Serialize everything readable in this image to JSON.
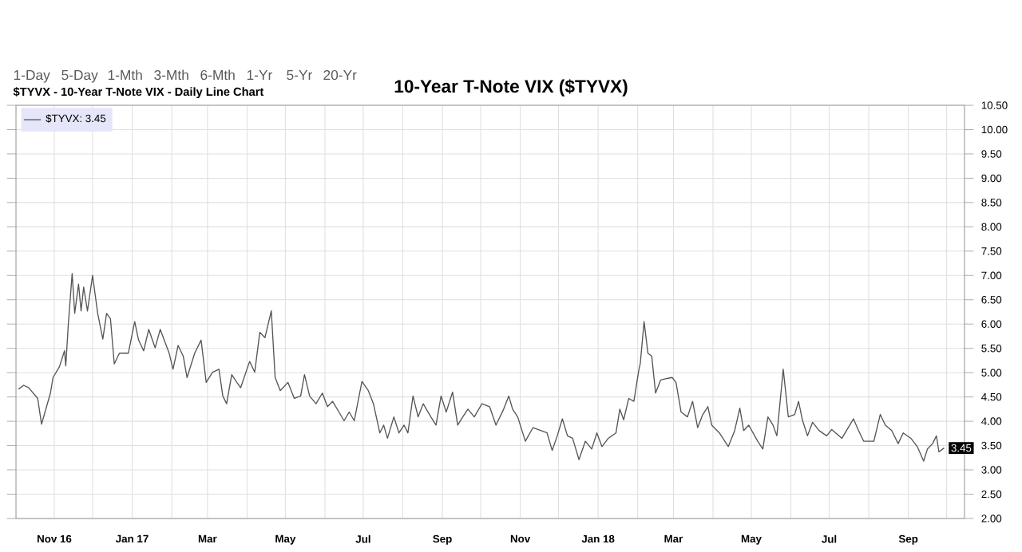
{
  "chart_data": {
    "type": "line",
    "title": "10-Year T-Note VIX ($TYVX)",
    "subtitle": "$TYVX - 10-Year T-Note VIX - Daily Line Chart",
    "annotations": [
      "1-Day",
      "5-Day",
      "1-Mth",
      "3-Mth",
      "6-Mth",
      "1-Yr",
      "5-Yr",
      "20-Yr",
      "3.45"
    ],
    "x": [
      "2016-10-04",
      "2016-10-08",
      "2016-10-12",
      "2016-10-19",
      "2016-10-22",
      "2016-10-29",
      "2016-10-31",
      "2016-11-05",
      "2016-11-09",
      "2016-11-10",
      "2016-11-12",
      "2016-11-15",
      "2016-11-17",
      "2016-11-20",
      "2016-11-22",
      "2016-11-24",
      "2016-11-27",
      "2016-12-01",
      "2016-12-05",
      "2016-12-09",
      "2016-12-12",
      "2016-12-15",
      "2016-12-18",
      "2016-12-22",
      "2016-12-29",
      "2017-01-03",
      "2017-01-06",
      "2017-01-10",
      "2017-01-14",
      "2017-01-19",
      "2017-01-23",
      "2017-01-27",
      "2017-01-30",
      "2017-02-02",
      "2017-02-06",
      "2017-02-10",
      "2017-02-13",
      "2017-02-19",
      "2017-02-24",
      "2017-02-28",
      "2017-03-05",
      "2017-03-10",
      "2017-03-13",
      "2017-03-16",
      "2017-03-20",
      "2017-03-24",
      "2017-03-27",
      "2017-04-03",
      "2017-04-07",
      "2017-04-11",
      "2017-04-15",
      "2017-04-20",
      "2017-04-23",
      "2017-04-27",
      "2017-05-03",
      "2017-05-08",
      "2017-05-13",
      "2017-05-16",
      "2017-05-20",
      "2017-05-25",
      "2017-05-30",
      "2017-06-03",
      "2017-06-07",
      "2017-06-12",
      "2017-06-16",
      "2017-06-20",
      "2017-06-24",
      "2017-06-30",
      "2017-07-05",
      "2017-07-09",
      "2017-07-14",
      "2017-07-17",
      "2017-07-20",
      "2017-07-25",
      "2017-07-29",
      "2017-08-02",
      "2017-08-05",
      "2017-08-09",
      "2017-08-13",
      "2017-08-17",
      "2017-08-23",
      "2017-08-27",
      "2017-08-31",
      "2017-09-04",
      "2017-09-09",
      "2017-09-13",
      "2017-09-17",
      "2017-09-21",
      "2017-09-26",
      "2017-10-02",
      "2017-10-08",
      "2017-10-13",
      "2017-10-19",
      "2017-10-23",
      "2017-10-26",
      "2017-10-30",
      "2017-11-05",
      "2017-11-11",
      "2017-11-17",
      "2017-11-22",
      "2017-11-26",
      "2017-11-30",
      "2017-12-04",
      "2017-12-08",
      "2017-12-12",
      "2017-12-17",
      "2017-12-22",
      "2017-12-27",
      "2017-12-31",
      "2018-01-04",
      "2018-01-09",
      "2018-01-15",
      "2018-01-18",
      "2018-01-21",
      "2018-01-25",
      "2018-01-29",
      "2018-02-02",
      "2018-02-03",
      "2018-02-06",
      "2018-02-09",
      "2018-02-12",
      "2018-02-15",
      "2018-02-19",
      "2018-02-24",
      "2018-02-28",
      "2018-03-03",
      "2018-03-07",
      "2018-03-12",
      "2018-03-16",
      "2018-03-20",
      "2018-03-24",
      "2018-03-28",
      "2018-03-31",
      "2018-04-06",
      "2018-04-13",
      "2018-04-18",
      "2018-04-22",
      "2018-04-25",
      "2018-04-29",
      "2018-05-06",
      "2018-05-10",
      "2018-05-14",
      "2018-05-18",
      "2018-05-21",
      "2018-05-26",
      "2018-05-30",
      "2018-06-04",
      "2018-06-07",
      "2018-06-10",
      "2018-06-14",
      "2018-06-18",
      "2018-06-23",
      "2018-06-29",
      "2018-07-03",
      "2018-07-11",
      "2018-07-20",
      "2018-07-24",
      "2018-07-28",
      "2018-08-05",
      "2018-08-10",
      "2018-08-14",
      "2018-08-19",
      "2018-08-24",
      "2018-08-28",
      "2018-09-03",
      "2018-09-08",
      "2018-09-13",
      "2018-09-16",
      "2018-09-20",
      "2018-09-23",
      "2018-09-25",
      "2018-09-29"
    ],
    "series": [
      {
        "name": "$TYVX: 3.45",
        "color": "#555555",
        "values": [
          4.66,
          4.74,
          4.69,
          4.47,
          3.94,
          4.58,
          4.9,
          5.12,
          5.45,
          5.14,
          6.0,
          7.04,
          6.22,
          6.82,
          6.27,
          6.76,
          6.27,
          7.0,
          6.22,
          5.69,
          6.22,
          6.11,
          5.18,
          5.4,
          5.4,
          6.05,
          5.67,
          5.45,
          5.89,
          5.51,
          5.89,
          5.61,
          5.4,
          5.07,
          5.56,
          5.34,
          4.9,
          5.4,
          5.67,
          4.8,
          5.01,
          5.07,
          4.52,
          4.36,
          4.96,
          4.8,
          4.69,
          5.23,
          5.01,
          5.83,
          5.72,
          6.27,
          4.9,
          4.63,
          4.8,
          4.47,
          4.52,
          4.96,
          4.52,
          4.36,
          4.58,
          4.3,
          4.41,
          4.19,
          4.01,
          4.19,
          4.01,
          4.82,
          4.63,
          4.36,
          3.76,
          3.92,
          3.65,
          4.09,
          3.76,
          3.92,
          3.76,
          4.52,
          4.09,
          4.36,
          4.09,
          3.92,
          4.52,
          4.19,
          4.6,
          3.92,
          4.09,
          4.25,
          4.09,
          4.36,
          4.3,
          3.92,
          4.25,
          4.52,
          4.25,
          4.09,
          3.59,
          3.87,
          3.81,
          3.76,
          3.4,
          3.7,
          4.05,
          3.7,
          3.65,
          3.21,
          3.59,
          3.43,
          3.76,
          3.48,
          3.65,
          3.76,
          4.25,
          4.03,
          4.47,
          4.41,
          5.07,
          5.18,
          6.05,
          5.4,
          5.34,
          4.58,
          4.85,
          4.88,
          4.9,
          4.8,
          4.19,
          4.09,
          4.41,
          3.87,
          4.14,
          4.3,
          3.92,
          3.76,
          3.48,
          3.81,
          4.27,
          3.81,
          3.92,
          3.59,
          3.43,
          4.09,
          3.92,
          3.7,
          5.07,
          4.09,
          4.14,
          4.41,
          4.03,
          3.7,
          3.98,
          3.81,
          3.7,
          3.83,
          3.65,
          4.05,
          3.81,
          3.59,
          3.59,
          4.14,
          3.92,
          3.81,
          3.54,
          3.76,
          3.65,
          3.48,
          3.18,
          3.43,
          3.54,
          3.7,
          3.37,
          3.45
        ]
      }
    ],
    "xlim": [
      "2016-10-02",
      "2018-10-15"
    ],
    "xticks": [
      {
        "value": "2016-11-01",
        "label": "Nov 16"
      },
      {
        "value": "2016-12-01",
        "label": null
      },
      {
        "value": "2017-01-01",
        "label": "Jan 17"
      },
      {
        "value": "2017-02-01",
        "label": null
      },
      {
        "value": "2017-03-01",
        "label": "Mar"
      },
      {
        "value": "2017-04-01",
        "label": null
      },
      {
        "value": "2017-05-01",
        "label": "May"
      },
      {
        "value": "2017-06-01",
        "label": null
      },
      {
        "value": "2017-07-01",
        "label": "Jul"
      },
      {
        "value": "2017-08-01",
        "label": null
      },
      {
        "value": "2017-09-01",
        "label": "Sep"
      },
      {
        "value": "2017-10-01",
        "label": null
      },
      {
        "value": "2017-11-01",
        "label": "Nov"
      },
      {
        "value": "2017-12-01",
        "label": null
      },
      {
        "value": "2018-01-01",
        "label": "Jan 18"
      },
      {
        "value": "2018-02-01",
        "label": null
      },
      {
        "value": "2018-03-01",
        "label": "Mar"
      },
      {
        "value": "2018-04-01",
        "label": null
      },
      {
        "value": "2018-05-01",
        "label": "May"
      },
      {
        "value": "2018-06-01",
        "label": null
      },
      {
        "value": "2018-07-01",
        "label": "Jul"
      },
      {
        "value": "2018-08-01",
        "label": null
      },
      {
        "value": "2018-09-01",
        "label": "Sep"
      },
      {
        "value": "2018-10-01",
        "label": null
      }
    ],
    "ylim": [
      2.0,
      10.5
    ],
    "yticks": [
      {
        "value": 2.0,
        "label": "2.00"
      },
      {
        "value": 2.5,
        "label": "2.50"
      },
      {
        "value": 3.0,
        "label": "3.00"
      },
      {
        "value": 3.5,
        "label": "3.50"
      },
      {
        "value": 4.0,
        "label": "4.00"
      },
      {
        "value": 4.5,
        "label": "4.50"
      },
      {
        "value": 5.0,
        "label": "5.00"
      },
      {
        "value": 5.5,
        "label": "5.50"
      },
      {
        "value": 6.0,
        "label": "6.00"
      },
      {
        "value": 6.5,
        "label": "6.50"
      },
      {
        "value": 7.0,
        "label": "7.00"
      },
      {
        "value": 7.5,
        "label": "7.50"
      },
      {
        "value": 8.0,
        "label": "8.00"
      },
      {
        "value": 8.5,
        "label": "8.50"
      },
      {
        "value": 9.0,
        "label": "9.00"
      },
      {
        "value": 9.5,
        "label": "9.50"
      },
      {
        "value": 10.0,
        "label": "10.00"
      },
      {
        "value": 10.5,
        "label": "10.50"
      }
    ],
    "grid": true,
    "legend": "top left",
    "marker": "none",
    "line_style": "solid"
  }
}
